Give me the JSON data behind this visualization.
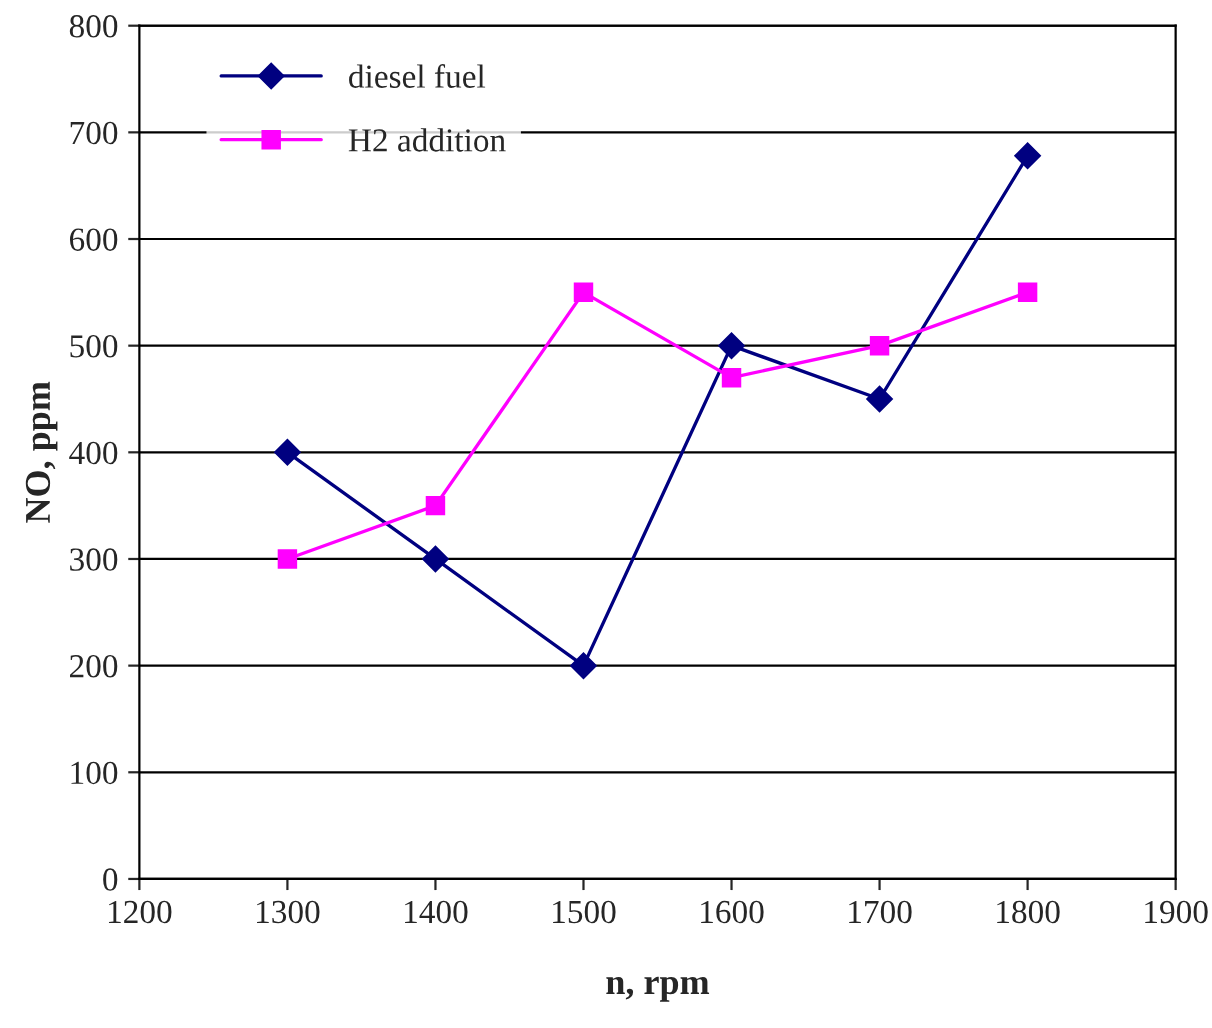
{
  "chart_data": {
    "type": "line",
    "xlabel": "n, rpm",
    "ylabel": "NO, ppm",
    "x": [
      1300,
      1400,
      1500,
      1600,
      1700,
      1800
    ],
    "series": [
      {
        "name": "diesel fuel",
        "color": "#000080",
        "marker": "diamond",
        "values": [
          400,
          300,
          200,
          500,
          450,
          678
        ]
      },
      {
        "name": "H2 addition",
        "color": "#ff00ff",
        "marker": "square",
        "values": [
          300,
          350,
          550,
          470,
          500,
          550
        ]
      }
    ],
    "xlim": [
      1200,
      1900
    ],
    "xticks": [
      1200,
      1300,
      1400,
      1500,
      1600,
      1700,
      1800,
      1900
    ],
    "ylim": [
      0,
      800
    ],
    "yticks": [
      0,
      100,
      200,
      300,
      400,
      500,
      600,
      700,
      800
    ],
    "grid": "y",
    "legend": "top left",
    "line_style": "solid"
  }
}
